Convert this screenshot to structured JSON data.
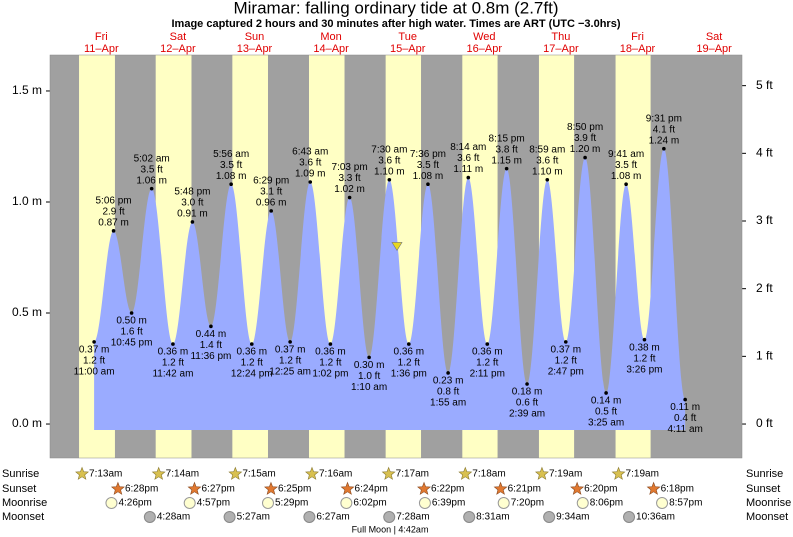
{
  "chart_data": {
    "type": "tide",
    "title": "Miramar: falling  ordinary tide at 0.8m (2.7ft)",
    "subtitle": "Image captured 2 hours and 30 minutes after high water. Times are ART (UTC −3.0hrs)",
    "current_height": 0.8,
    "days": [
      {
        "weekday": "Fri",
        "date": "11–Apr"
      },
      {
        "weekday": "Sat",
        "date": "12–Apr"
      },
      {
        "weekday": "Sun",
        "date": "13–Apr"
      },
      {
        "weekday": "Mon",
        "date": "14–Apr"
      },
      {
        "weekday": "Tue",
        "date": "15–Apr"
      },
      {
        "weekday": "Wed",
        "date": "16–Apr"
      },
      {
        "weekday": "Thu",
        "date": "17–Apr"
      },
      {
        "weekday": "Fri",
        "date": "18–Apr"
      },
      {
        "weekday": "Sat",
        "date": "19–Apr"
      }
    ],
    "ylim": [
      -0.153,
      1.662
    ],
    "yticks": [
      {
        "value": 0,
        "label": "0.0 m"
      },
      {
        "value": 0.5,
        "label": "0.5 m"
      },
      {
        "value": 1,
        "label": "1.0 m"
      },
      {
        "value": 1.5,
        "label": "1.5 m"
      }
    ],
    "y2lim": [
      -0.502,
      5.453
    ],
    "y2ticks": [
      {
        "value": 0,
        "label": "0 ft"
      },
      {
        "value": 1,
        "label": "1 ft"
      },
      {
        "value": 2,
        "label": "2 ft"
      },
      {
        "value": 3,
        "label": "3 ft"
      },
      {
        "value": 4,
        "label": "4 ft"
      },
      {
        "value": 5,
        "label": "5 ft"
      }
    ],
    "tides": {
      "color": "#9aabff",
      "times": [
        "11:00 am",
        "5:06 pm",
        "10:45 pm",
        "5:02 am",
        "11:42 am",
        "5:48 pm",
        "11:36 pm",
        "5:56 am",
        "12:24 pm",
        "6:29 pm",
        "12:25 am",
        "6:43 am",
        "1:02 pm",
        "7:03 pm",
        "1:10 am",
        "7:30 am",
        "1:36 pm",
        "7:36 pm",
        "1:55 am",
        "8:14 am",
        "2:11 pm",
        "8:15 pm",
        "2:39 am",
        "8:59 am",
        "2:47 pm",
        "8:50 pm",
        "3:25 am",
        "9:41 am",
        "3:26 pm",
        "9:31 pm",
        "4:11 am"
      ],
      "values": [
        0.37,
        0.87,
        0.5,
        1.06,
        0.36,
        0.91,
        0.44,
        1.08,
        0.36,
        0.96,
        0.37,
        1.09,
        0.36,
        1.02,
        0.3,
        1.1,
        0.36,
        1.08,
        0.23,
        1.11,
        0.36,
        1.15,
        0.18,
        1.1,
        0.37,
        1.2,
        0.14,
        1.08,
        0.38,
        1.24,
        0.11
      ],
      "value_labels": [
        "0.37 m",
        "0.87 m",
        "0.50 m",
        "1.06 m",
        "0.36 m",
        "0.91 m",
        "0.44 m",
        "1.08 m",
        "0.36 m",
        "0.96 m",
        "0.37 m",
        "1.09 m",
        "0.36 m",
        "1.02 m",
        "0.30 m",
        "1.10 m",
        "0.36 m",
        "1.08 m",
        "0.23 m",
        "1.11 m",
        "0.36 m",
        "1.15 m",
        "0.18 m",
        "1.10 m",
        "0.37 m",
        "1.20 m",
        "0.14 m",
        "1.08 m",
        "0.38 m",
        "1.24 m",
        "0.11 m"
      ],
      "feet_labels": [
        "1.2 ft",
        "2.9 ft",
        "1.6 ft",
        "3.5 ft",
        "1.2 ft",
        "3.0 ft",
        "1.4 ft",
        "3.5 ft",
        "1.2 ft",
        "3.1 ft",
        "1.2 ft",
        "3.6 ft",
        "1.2 ft",
        "3.3 ft",
        "1.0 ft",
        "3.6 ft",
        "1.2 ft",
        "3.5 ft",
        "0.8 ft",
        "3.6 ft",
        "1.2 ft",
        "3.8 ft",
        "0.6 ft",
        "3.6 ft",
        "1.2 ft",
        "3.9 ft",
        "0.5 ft",
        "3.5 ft",
        "1.2 ft",
        "4.1 ft",
        "0.4 ft"
      ]
    },
    "row_names": {
      "sunrise": "Sunrise",
      "sunset": "Sunset",
      "moonrise": "Moonrise",
      "moonset": "Moonset"
    },
    "sunrise": [
      "7:13am",
      "7:14am",
      "7:15am",
      "7:16am",
      "7:17am",
      "7:18am",
      "7:19am",
      "7:19am",
      null
    ],
    "sunset": [
      "6:28pm",
      "6:27pm",
      "6:25pm",
      "6:24pm",
      "6:22pm",
      "6:21pm",
      "6:20pm",
      "6:18pm",
      null
    ],
    "moonrise": [
      "4:26pm",
      "4:57pm",
      "5:29pm",
      "6:02pm",
      "6:39pm",
      "7:20pm",
      "8:06pm",
      "8:57pm",
      null
    ],
    "moonset": [
      null,
      "4:28am",
      "5:27am",
      "6:27am",
      "7:28am",
      "8:31am",
      "9:34am",
      "10:36am",
      null
    ],
    "moon_phase": "Full Moon | 4:42am"
  }
}
